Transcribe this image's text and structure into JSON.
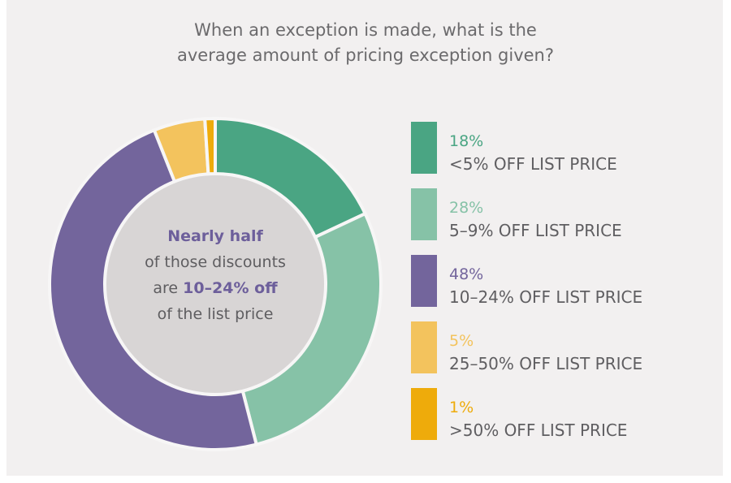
{
  "title_line1": "When an exception is made, what is the",
  "title_line2": "average amount of pricing exception given?",
  "center_text": {
    "line1": "Nearly half",
    "line2": "of those discounts",
    "line3_pre": "are ",
    "line3_bold": "10–24% off",
    "line4": "of the list price"
  },
  "chart_data": {
    "type": "pie",
    "variant": "donut",
    "title": "When an exception is made, what is the average amount of pricing exception given?",
    "legend_placement": "right",
    "categories": [
      "<5% OFF LIST PRICE",
      "5–9% OFF LIST PRICE",
      "10–24% OFF LIST PRICE",
      "25–50% OFF LIST PRICE",
      ">50% OFF LIST PRICE"
    ],
    "values": [
      18,
      28,
      48,
      5,
      1
    ],
    "labels": [
      "18%",
      "28%",
      "48%",
      "5%",
      "1%"
    ],
    "colors": [
      "#4aa583",
      "#86c2a7",
      "#73659c",
      "#f3c35d",
      "#eeab0b"
    ],
    "center_color": "#d8d5d5"
  }
}
